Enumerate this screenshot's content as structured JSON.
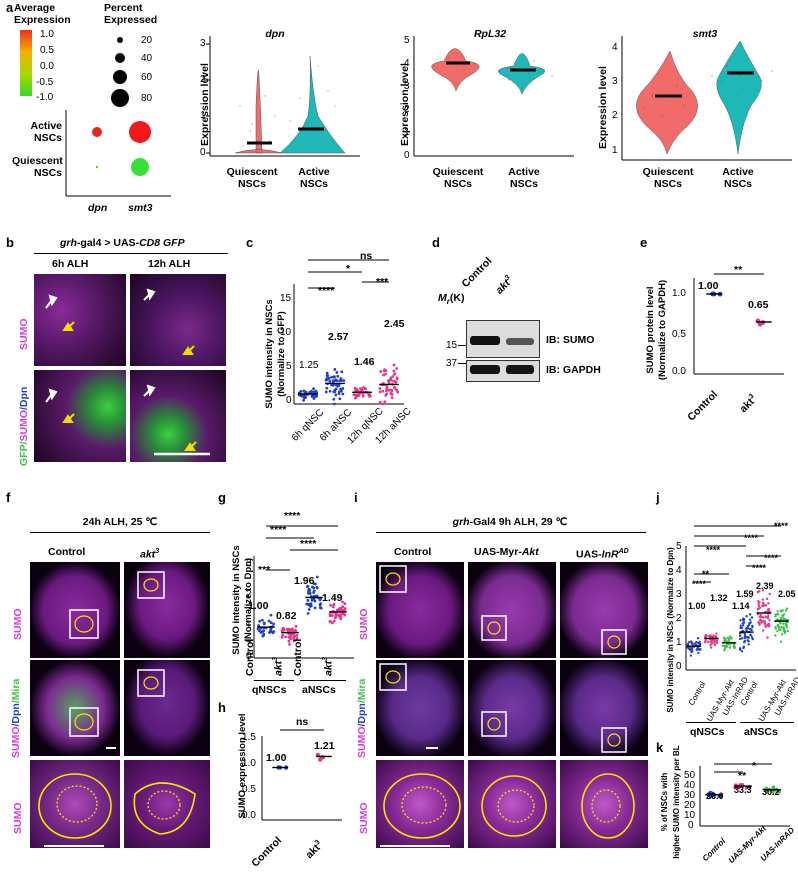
{
  "panel_letters": [
    "a",
    "b",
    "c",
    "d",
    "e",
    "f",
    "g",
    "h",
    "i",
    "j",
    "k"
  ],
  "a": {
    "avg_expr_title": "Average\nExpression",
    "avg_ticks": [
      "1.0",
      "0.5",
      "0.0",
      "-0.5",
      "-1.0"
    ],
    "pct_title": "Percent\nExpressed",
    "pct_ticks": [
      "20",
      "40",
      "60",
      "80"
    ],
    "dot_rows": [
      "Active\nNSCs",
      "Quiescent\nNSCs"
    ],
    "dot_cols": [
      "dpn",
      "smt3"
    ],
    "violins": [
      {
        "gene": "dpn",
        "ylabel": "Expression level",
        "yticks": [
          "0",
          "1",
          "2",
          "3"
        ],
        "groups": [
          "Quiescent\nNSCs",
          "Active\nNSCs"
        ]
      },
      {
        "gene": "RpL32",
        "ylabel": "Expression level",
        "yticks": [
          "0",
          "1",
          "2",
          "3",
          "4",
          "5"
        ],
        "groups": [
          "Quiescent\nNSCs",
          "Active\nNSCs"
        ]
      },
      {
        "gene": "smt3",
        "ylabel": "Expression level",
        "yticks": [
          "1",
          "2",
          "3",
          "4"
        ],
        "groups": [
          "Quiescent\nNSCs",
          "Active\nNSCs"
        ]
      }
    ]
  },
  "b": {
    "title_1": "grh",
    "title_2": "-gal4 > UAS-",
    "title_3": "CD8 GFP",
    "col1": "6h ALH",
    "col2": "12h ALH",
    "row1": "SUMO",
    "row2_a": "GFP/",
    "row2_b": "SUMO",
    "row2_c": "/Dpn"
  },
  "c": {
    "ylabel": "SUMO intensity in NSCs\n(Normalize to GFP)",
    "yticks": [
      "0",
      "5",
      "10",
      "15"
    ],
    "categories": [
      "6h qNSC",
      "6h aNSC",
      "12h qNSC",
      "12h aNSC"
    ],
    "means": [
      "1.25",
      "2.57",
      "1.46",
      "2.45"
    ],
    "sig": [
      "ns",
      "*",
      "****",
      "***"
    ]
  },
  "d": {
    "mr": "M",
    "mr_sub": "r",
    "mr_unit": "(K)",
    "lanes": [
      "Control",
      "akt"
    ],
    "lane2_sup": "3",
    "markers": [
      "15",
      "37"
    ],
    "blots": [
      "IB: SUMO",
      "IB: GAPDH"
    ]
  },
  "e": {
    "ylabel": "SUMO protein level\n(Normalize to GAPDH)",
    "yticks": [
      "0.0",
      "0.5",
      "1.0"
    ],
    "categories": [
      "Control",
      "akt"
    ],
    "cat_sup": "3",
    "means": [
      "1.00",
      "0.65"
    ],
    "sig": "**"
  },
  "f": {
    "title": "24h ALH, 25 ℃",
    "col1": "Control",
    "col2": "akt",
    "col2_sup": "3",
    "row1": "SUMO",
    "row2_a": "SUMO",
    "row2_b": "/Dpn",
    "row2_c": "/Mira",
    "row3": "SUMO"
  },
  "g": {
    "ylabel": "SUMO intensity in NSCs\n(Normalize to Dpn)",
    "yticks": [
      "0",
      "1",
      "2",
      "3"
    ],
    "categories": [
      "Control",
      "akt",
      "Control",
      "akt"
    ],
    "cat_sup": "3",
    "groups": [
      "qNSCs",
      "aNSCs"
    ],
    "means": [
      "1.00",
      "0.82",
      "1.96",
      "1.49"
    ],
    "sig": [
      "****",
      "****",
      "****",
      "***"
    ]
  },
  "h": {
    "ylabel": "SUMO expression level",
    "yticks": [
      "0.0",
      "0.5",
      "1.0",
      "1.5"
    ],
    "categories": [
      "Control",
      "akt"
    ],
    "cat_sup": "3",
    "means": [
      "1.00",
      "1.21"
    ],
    "sig": "ns"
  },
  "i": {
    "title_1": "grh",
    "title_2": "-Gal4 9h ALH, 29 ℃",
    "col1": "Control",
    "col2_a": "UAS-Myr-",
    "col2_b": "Akt",
    "col3_a": "UAS-",
    "col3_b": "InR",
    "col3_sup": "AD",
    "row1": "SUMO",
    "row2_a": "SUMO",
    "row2_b": "/Dpn",
    "row2_c": "/Mira",
    "row3": "SUMO"
  },
  "j": {
    "ylabel": "SUMO intensity in NSCs (Normalize to Dpn)",
    "yticks": [
      "0",
      "1",
      "2",
      "3",
      "4",
      "5"
    ],
    "categories": [
      "Control",
      "UAS-Myr-Akt",
      "UAS-InRAD",
      "Control",
      "UAS-Myr-Akt",
      "UAS-InRAD"
    ],
    "groups": [
      "qNSCs",
      "aNSCs"
    ],
    "means": [
      "1.00",
      "1.32",
      "1.14",
      "1.59",
      "2.39",
      "2.05"
    ],
    "sig": [
      "****",
      "****",
      "****",
      "****",
      "****",
      "****",
      "**"
    ]
  },
  "k": {
    "ylabel": "% of NSCs with\nhigher SUMO intensity per BL",
    "yticks": [
      "0",
      "10",
      "20",
      "30",
      "40",
      "50"
    ],
    "categories": [
      "Control",
      "UAS-Myr-Akt",
      "UAS-InRAD"
    ],
    "means": [
      "26.0",
      "33.3",
      "30.2"
    ],
    "sig": [
      "*",
      "**"
    ]
  },
  "scale_bar_color": "#ffffff",
  "colors": {
    "quiescent": "#f26b6b",
    "active": "#1fb8b8",
    "ctrl_blue": "#1f3fcf",
    "akt_pink": "#e8348a",
    "inr_green": "#3cc04a",
    "sumo_magenta": "#d83cd8",
    "outline": "#f5e600"
  }
}
